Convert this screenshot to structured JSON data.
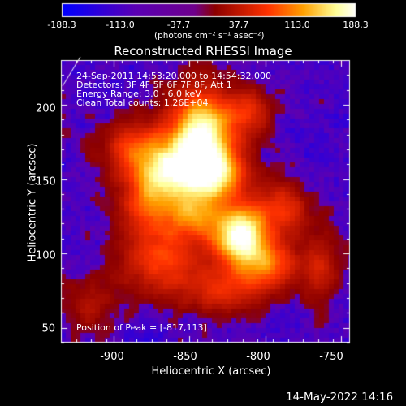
{
  "chart_data": {
    "type": "heatmap",
    "title": "Reconstructed RHESSI Image",
    "xlabel": "Heliocentric X (arcsec)",
    "ylabel": "Heliocentric Y (arcsec)",
    "xlim": [
      -935,
      -744
    ],
    "ylim": [
      40,
      230
    ],
    "xticks": [
      -900,
      -850,
      -800,
      -750
    ],
    "yticks": [
      50,
      100,
      150,
      200
    ],
    "colorbar": {
      "range": [
        -188.3,
        188.3
      ],
      "ticks": [
        "-188.3",
        "-113.0",
        "-37.7",
        "37.7",
        "113.0",
        "188.3"
      ],
      "unit": "(photons cm⁻² s⁻¹ asec⁻²)",
      "colormap": [
        "#0000ff",
        "#5a00b4",
        "#6e008c",
        "#8c0000",
        "#ff3200",
        "#ffa000",
        "#ffff96",
        "#ffffff"
      ]
    },
    "info_lines": [
      "24-Sep-2011 14:53:20.000 to 14:54:32.000",
      "Detectors: 3F 4F 5F 6F 7F 8F, Att 1",
      "Energy Range: 3.0 - 6.0 keV",
      "Clean     Total counts: 1.26E+04"
    ],
    "peak_text": "Position of Peak = [-817,113]",
    "peak_position": [
      -817,
      113
    ],
    "sources": [
      {
        "x": -842,
        "y": 180,
        "sx": 15,
        "sy": 20,
        "amp": 1.0
      },
      {
        "x": -833,
        "y": 152,
        "sx": 14,
        "sy": 12,
        "amp": 0.75
      },
      {
        "x": -817,
        "y": 113,
        "sx": 12,
        "sy": 13,
        "amp": 1.05
      },
      {
        "x": -848,
        "y": 125,
        "sx": 12,
        "sy": 10,
        "amp": 0.6
      },
      {
        "x": -863,
        "y": 156,
        "sx": 14,
        "sy": 14,
        "amp": 0.7
      },
      {
        "x": -878,
        "y": 135,
        "sx": 12,
        "sy": 15,
        "amp": 0.5
      },
      {
        "x": -888,
        "y": 170,
        "sx": 13,
        "sy": 12,
        "amp": 0.45
      },
      {
        "x": -800,
        "y": 92,
        "sx": 15,
        "sy": 12,
        "amp": 0.55
      },
      {
        "x": -790,
        "y": 130,
        "sx": 12,
        "sy": 12,
        "amp": 0.4
      },
      {
        "x": -868,
        "y": 95,
        "sx": 18,
        "sy": 15,
        "amp": 0.45
      },
      {
        "x": -830,
        "y": 75,
        "sx": 16,
        "sy": 10,
        "amp": 0.35
      },
      {
        "x": -810,
        "y": 195,
        "sx": 10,
        "sy": 10,
        "amp": 0.35
      },
      {
        "x": -763,
        "y": 90,
        "sx": 8,
        "sy": 18,
        "amp": 0.25
      },
      {
        "x": -915,
        "y": 65,
        "sx": 12,
        "sy": 12,
        "amp": 0.2
      }
    ]
  },
  "timestamp": "14-May-2022 14:16"
}
